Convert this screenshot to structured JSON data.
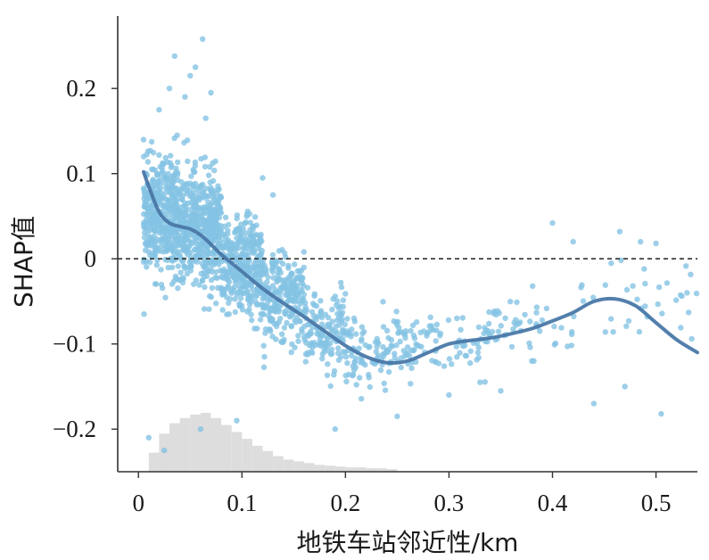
{
  "chart_data": {
    "type": "scatter",
    "xlabel": "地铁车站邻近性/km",
    "ylabel": "SHAP值",
    "xlim": [
      -0.02,
      0.54
    ],
    "ylim": [
      -0.25,
      0.285
    ],
    "x_ticks": [
      {
        "value": 0,
        "label": "0"
      },
      {
        "value": 0.1,
        "label": "0.1"
      },
      {
        "value": 0.2,
        "label": "0.2"
      },
      {
        "value": 0.3,
        "label": "0.3"
      },
      {
        "value": 0.4,
        "label": "0.4"
      },
      {
        "value": 0.5,
        "label": "0.5"
      }
    ],
    "y_ticks": [
      {
        "value": 0.2,
        "label": "0.2"
      },
      {
        "value": 0.1,
        "label": "0.1"
      },
      {
        "value": 0,
        "label": "0"
      },
      {
        "value": -0.1,
        "label": "−0.1"
      },
      {
        "value": -0.2,
        "label": "−0.2"
      }
    ],
    "reference_line": {
      "y": 0,
      "style": "dashed",
      "color": "#333333"
    },
    "colors": {
      "points": "#85c3e3",
      "trend": "#4a78a8",
      "histogram": "#dddddd"
    },
    "trend_line": {
      "x": [
        0.005,
        0.01,
        0.02,
        0.03,
        0.04,
        0.05,
        0.06,
        0.07,
        0.08,
        0.09,
        0.1,
        0.12,
        0.14,
        0.16,
        0.18,
        0.2,
        0.22,
        0.24,
        0.26,
        0.28,
        0.3,
        0.32,
        0.34,
        0.36,
        0.38,
        0.4,
        0.42,
        0.44,
        0.46,
        0.48,
        0.5,
        0.52,
        0.54
      ],
      "y": [
        0.102,
        0.085,
        0.055,
        0.042,
        0.038,
        0.035,
        0.028,
        0.017,
        0.005,
        -0.005,
        -0.015,
        -0.035,
        -0.052,
        -0.068,
        -0.085,
        -0.102,
        -0.115,
        -0.122,
        -0.12,
        -0.11,
        -0.1,
        -0.096,
        -0.093,
        -0.088,
        -0.082,
        -0.073,
        -0.063,
        -0.05,
        -0.047,
        -0.055,
        -0.075,
        -0.095,
        -0.11
      ]
    },
    "scatter_density": [
      {
        "x": [
          0.005,
          0.04
        ],
        "y_center": 0.05,
        "y_spread": 0.06,
        "count": 420
      },
      {
        "x": [
          0.04,
          0.08
        ],
        "y_center": 0.035,
        "y_spread": 0.06,
        "count": 480
      },
      {
        "x": [
          0.08,
          0.12
        ],
        "y_center": -0.01,
        "y_spread": 0.05,
        "count": 360
      },
      {
        "x": [
          0.12,
          0.16
        ],
        "y_center": -0.045,
        "y_spread": 0.045,
        "count": 240
      },
      {
        "x": [
          0.16,
          0.2
        ],
        "y_center": -0.085,
        "y_spread": 0.04,
        "count": 140
      },
      {
        "x": [
          0.2,
          0.26
        ],
        "y_center": -0.11,
        "y_spread": 0.04,
        "count": 110
      },
      {
        "x": [
          0.26,
          0.34
        ],
        "y_center": -0.1,
        "y_spread": 0.035,
        "count": 80
      },
      {
        "x": [
          0.34,
          0.42
        ],
        "y_center": -0.08,
        "y_spread": 0.035,
        "count": 45
      },
      {
        "x": [
          0.42,
          0.54
        ],
        "y_center": -0.05,
        "y_spread": 0.045,
        "count": 35
      }
    ],
    "outliers": [
      [
        0.062,
        0.258
      ],
      [
        0.035,
        0.238
      ],
      [
        0.055,
        0.225
      ],
      [
        0.05,
        0.215
      ],
      [
        0.03,
        0.2
      ],
      [
        0.07,
        0.195
      ],
      [
        0.045,
        0.19
      ],
      [
        0.02,
        0.175
      ],
      [
        0.065,
        0.165
      ],
      [
        0.12,
        0.095
      ],
      [
        0.13,
        0.075
      ],
      [
        0.4,
        0.042
      ],
      [
        0.42,
        0.02
      ],
      [
        0.465,
        0.032
      ],
      [
        0.485,
        0.02
      ],
      [
        0.5,
        0.018
      ],
      [
        0.505,
        -0.182
      ],
      [
        0.44,
        -0.17
      ],
      [
        0.47,
        -0.15
      ],
      [
        0.33,
        -0.145
      ],
      [
        0.35,
        -0.155
      ],
      [
        0.38,
        -0.12
      ],
      [
        0.53,
        -0.04
      ],
      [
        0.01,
        -0.21
      ],
      [
        0.025,
        -0.225
      ],
      [
        0.06,
        -0.2
      ],
      [
        0.095,
        -0.19
      ],
      [
        0.19,
        -0.2
      ],
      [
        0.25,
        -0.185
      ],
      [
        0.3,
        -0.16
      ]
    ],
    "histogram": {
      "bin_width": 0.01,
      "x_start": 0.01,
      "counts": [
        22,
        44,
        56,
        62,
        66,
        68,
        62,
        54,
        46,
        38,
        30,
        24,
        18,
        14,
        12,
        10,
        8,
        7,
        6,
        5,
        5,
        4,
        4,
        3
      ],
      "max_count": 68
    }
  }
}
